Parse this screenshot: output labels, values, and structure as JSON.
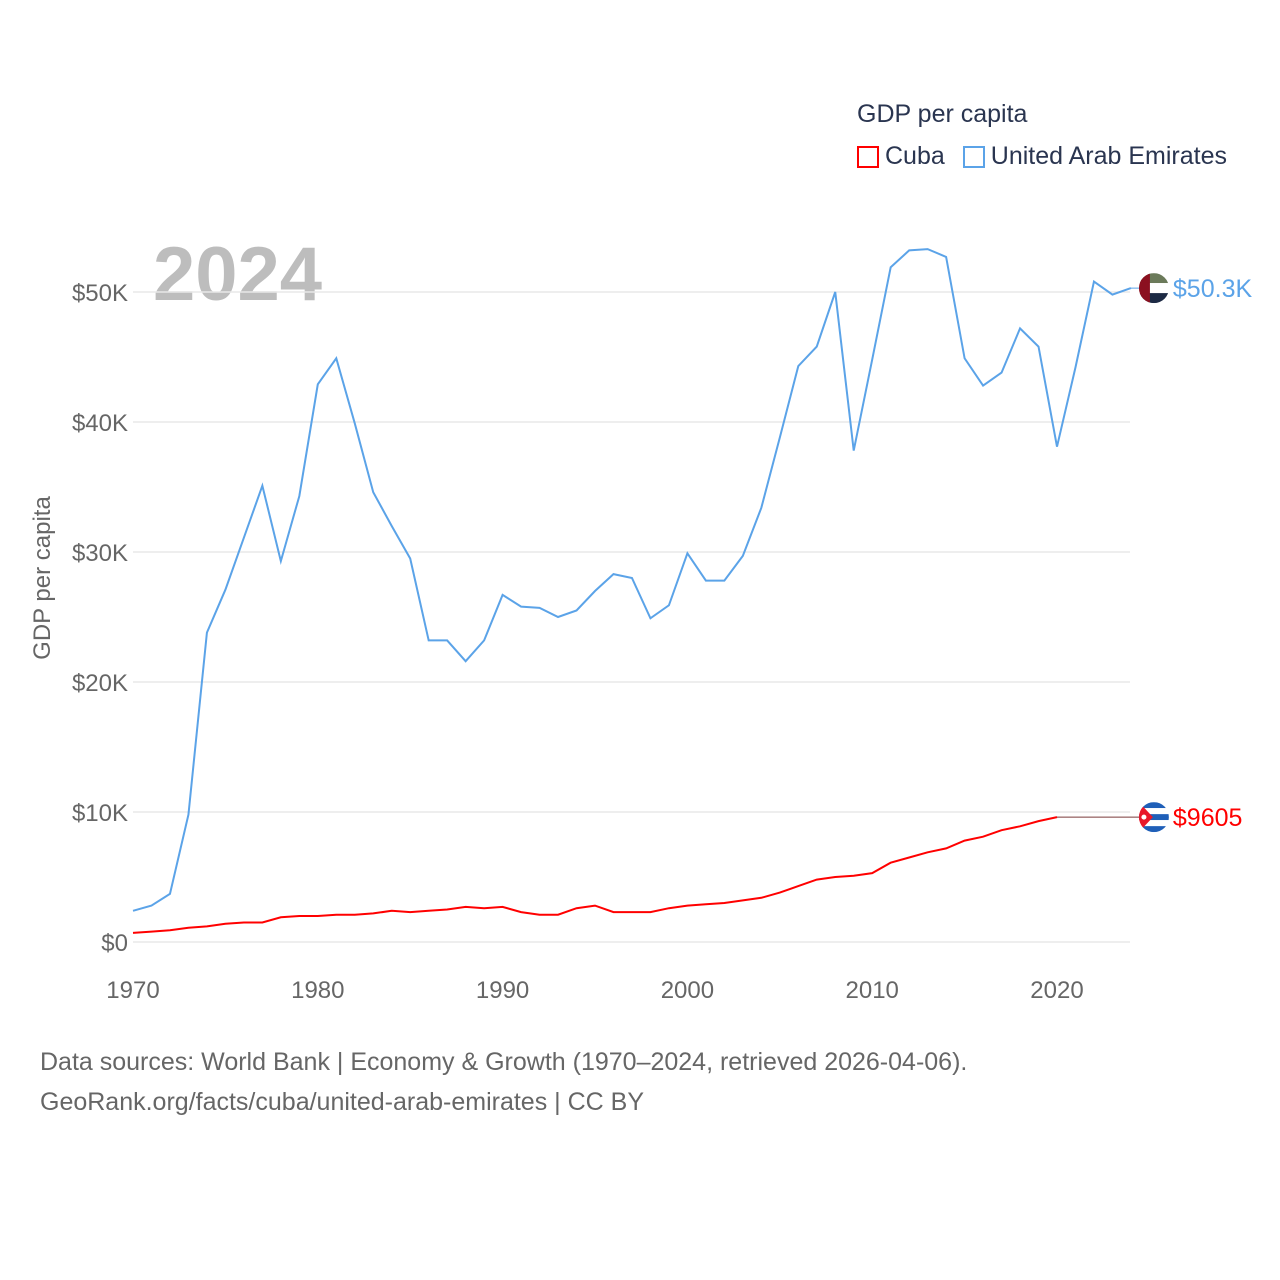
{
  "chart_data": {
    "type": "line",
    "title": "GDP per capita",
    "year_label": "2024",
    "xlabel": "",
    "ylabel": "GDP per capita",
    "xlim": [
      1970,
      2024
    ],
    "ylim": [
      0,
      55000
    ],
    "x_ticks": [
      1970,
      1980,
      1990,
      2000,
      2010,
      2020
    ],
    "x_tick_labels": [
      "1970",
      "1980",
      "1990",
      "2000",
      "2010",
      "2020"
    ],
    "y_ticks": [
      0,
      10000,
      20000,
      30000,
      40000,
      50000
    ],
    "y_tick_labels": [
      "$0",
      "$10K",
      "$20K",
      "$30K",
      "$40K",
      "$50K"
    ],
    "grid": true,
    "legend_position": "top-right",
    "x": [
      1970,
      1971,
      1972,
      1973,
      1974,
      1975,
      1976,
      1977,
      1978,
      1979,
      1980,
      1981,
      1982,
      1983,
      1984,
      1985,
      1986,
      1987,
      1988,
      1989,
      1990,
      1991,
      1992,
      1993,
      1994,
      1995,
      1996,
      1997,
      1998,
      1999,
      2000,
      2001,
      2002,
      2003,
      2004,
      2005,
      2006,
      2007,
      2008,
      2009,
      2010,
      2011,
      2012,
      2013,
      2014,
      2015,
      2016,
      2017,
      2018,
      2019,
      2020,
      2021,
      2022,
      2023,
      2024
    ],
    "series": [
      {
        "name": "Cuba",
        "color": "#ff0000",
        "end_label": "$9605",
        "flag": "cuba-flag",
        "values": [
          700,
          800,
          900,
          1100,
          1200,
          1400,
          1500,
          1500,
          1900,
          2000,
          2000,
          2100,
          2100,
          2200,
          2400,
          2300,
          2400,
          2500,
          2700,
          2600,
          2700,
          2300,
          2100,
          2100,
          2600,
          2800,
          2300,
          2300,
          2300,
          2600,
          2800,
          2900,
          3000,
          3200,
          3400,
          3800,
          4300,
          4800,
          5000,
          5100,
          5300,
          6100,
          6500,
          6900,
          7200,
          7800,
          8100,
          8600,
          8900,
          9300,
          9605,
          null,
          null,
          null,
          null
        ]
      },
      {
        "name": "United Arab Emirates",
        "color": "#5ba3e8",
        "end_label": "$50.3K",
        "flag": "uae-flag",
        "values": [
          2400,
          2800,
          3700,
          9800,
          23800,
          27100,
          31100,
          35100,
          29300,
          34300,
          42900,
          44900,
          39900,
          34600,
          32000,
          29500,
          23200,
          23200,
          21600,
          23200,
          26700,
          25800,
          25700,
          25000,
          25500,
          27000,
          28300,
          28000,
          24900,
          25900,
          29900,
          27800,
          27800,
          29700,
          33400,
          38800,
          44300,
          45800,
          50000,
          37800,
          44800,
          51900,
          53200,
          53300,
          52700,
          44900,
          42800,
          43800,
          47200,
          45800,
          38100,
          44200,
          50800,
          49800,
          50300
        ]
      }
    ]
  },
  "footer": {
    "line1": "Data sources: World Bank | Economy & Growth (1970–2024, retrieved 2026-04-06).",
    "line2": "GeoRank.org/facts/cuba/united-arab-emirates | CC BY"
  }
}
